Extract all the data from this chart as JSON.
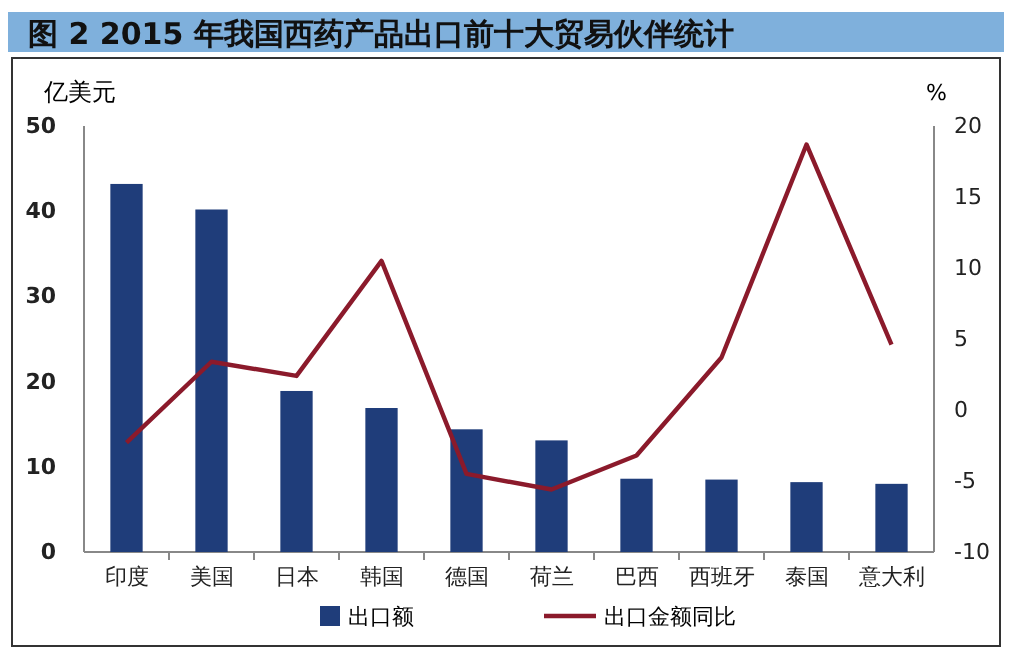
{
  "chart_data": {
    "type": "bar",
    "title": "图 2   2015 年我国西药产品出口前十大贸易伙伴统计",
    "ylabel": "亿美元",
    "y2label": "%",
    "categories": [
      "印度",
      "美国",
      "日本",
      "韩国",
      "德国",
      "荷兰",
      "巴西",
      "西班牙",
      "泰国",
      "意大利"
    ],
    "series": [
      {
        "name": "出口额",
        "type": "bar",
        "color": "#1f3d7a",
        "values": [
          43.2,
          40.2,
          18.9,
          16.9,
          14.4,
          13.1,
          8.6,
          8.5,
          8.2,
          8.0
        ]
      },
      {
        "name": "出口金额同比",
        "type": "line",
        "axis": "y2",
        "color": "#8b1a2b",
        "values": [
          -2.3,
          3.4,
          2.4,
          10.5,
          -4.5,
          -5.6,
          -3.2,
          3.7,
          18.7,
          4.6
        ]
      }
    ],
    "ylim": [
      0,
      50
    ],
    "yticks": [
      0,
      10,
      20,
      30,
      40,
      50
    ],
    "y2lim": [
      -10,
      20
    ],
    "y2ticks": [
      -10,
      -5,
      0,
      5,
      10,
      15,
      20
    ],
    "grid": false,
    "legend": "bottom",
    "marker": "none",
    "line_style": "solid"
  }
}
